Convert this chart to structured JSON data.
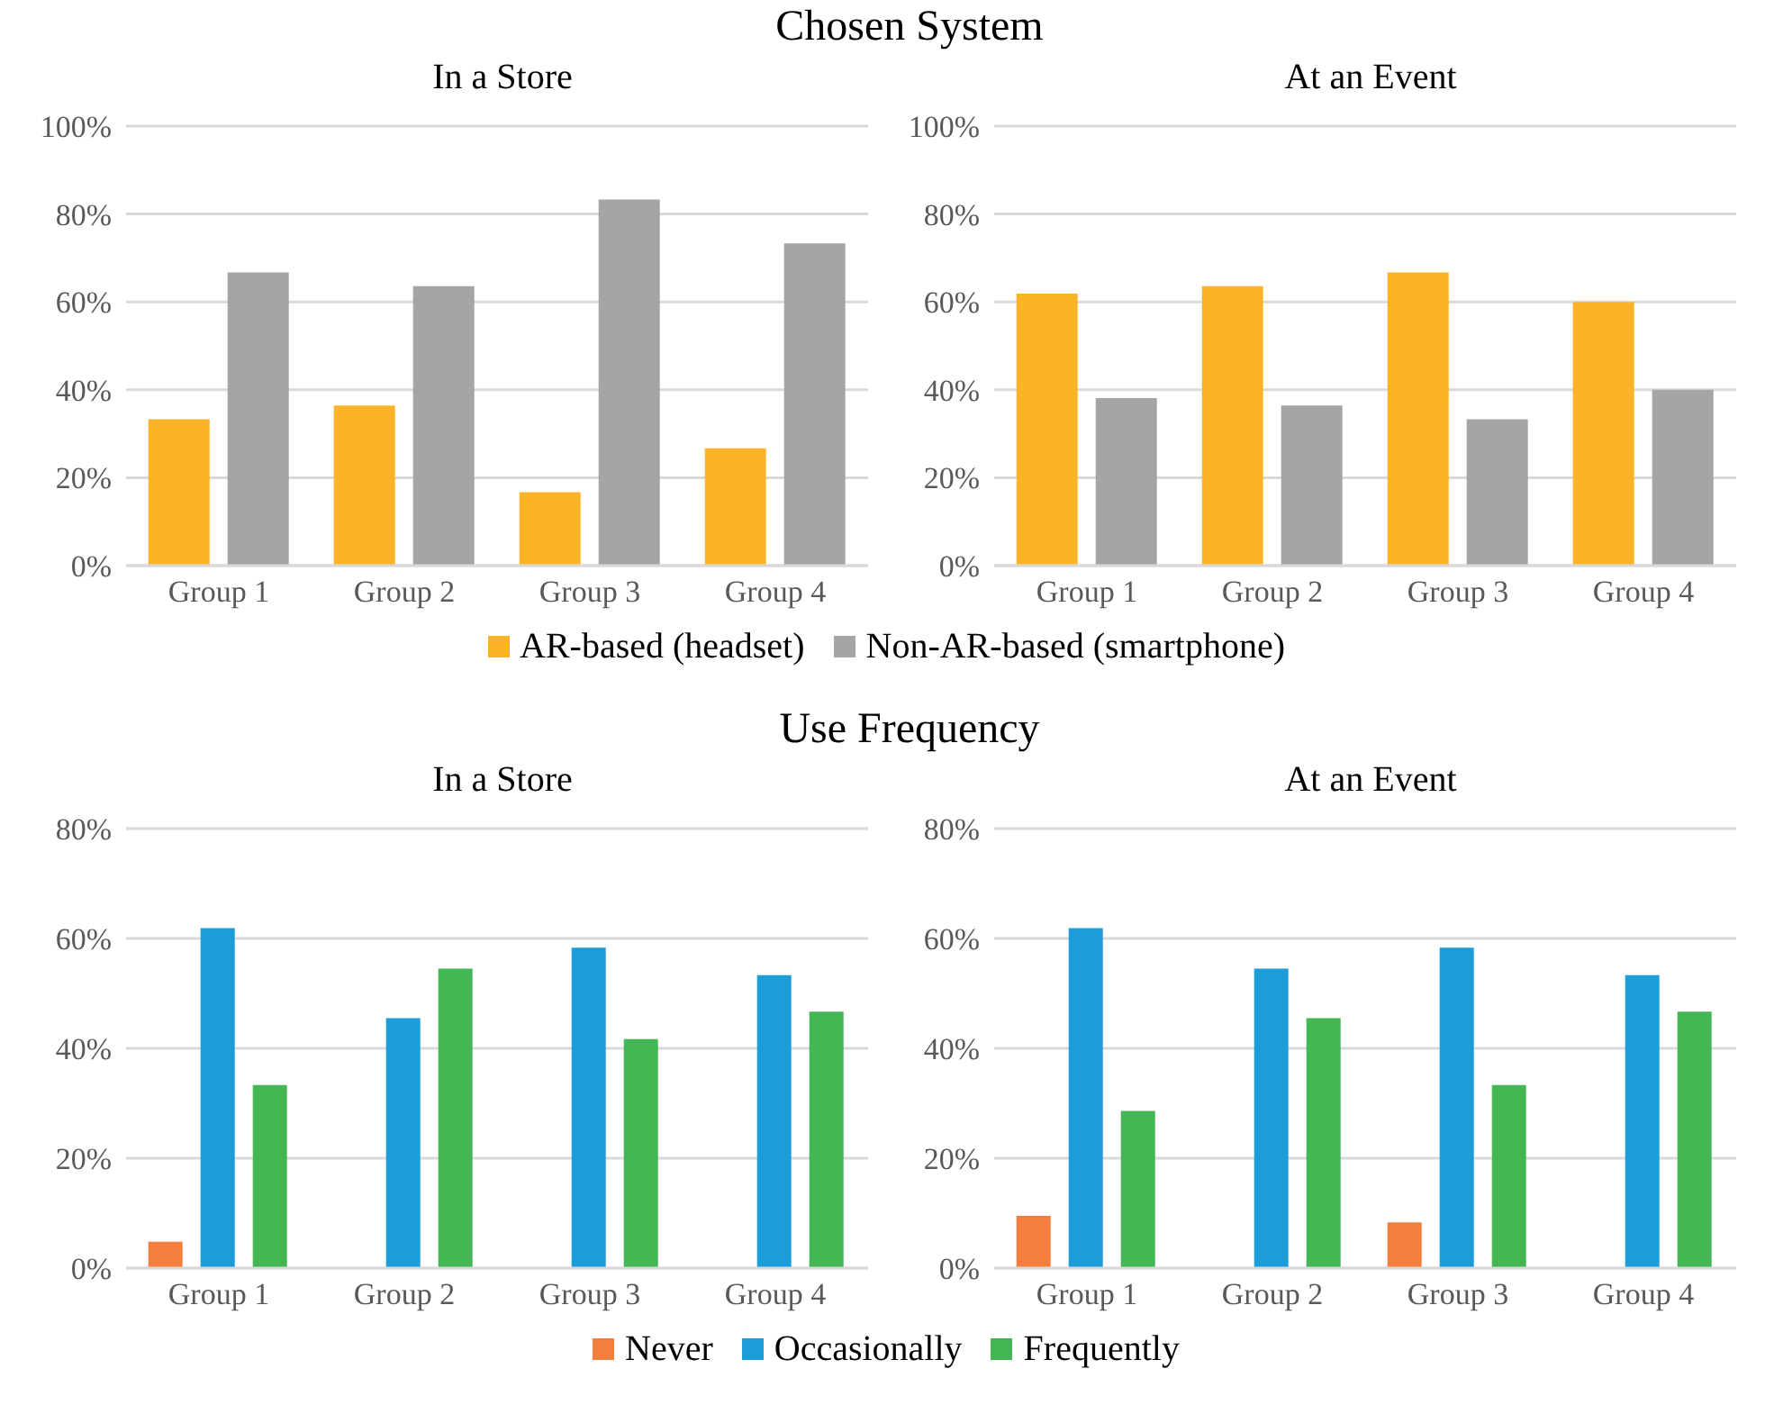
{
  "chart_data": [
    {
      "type": "bar",
      "title": "Chosen System",
      "subtitle": "In a Store",
      "categories": [
        "Group 1",
        "Group 2",
        "Group 3",
        "Group 4"
      ],
      "series": [
        {
          "name": "AR-based (headset)",
          "color": "#fbb427",
          "values": [
            33.3,
            36.4,
            16.7,
            26.7
          ]
        },
        {
          "name": "Non-AR-based (smartphone)",
          "color": "#a5a5a5",
          "values": [
            66.7,
            63.6,
            83.3,
            73.3
          ]
        }
      ],
      "ylim": [
        0,
        100
      ],
      "yticks": [
        {
          "value": 0,
          "label": "0%"
        },
        {
          "value": 20,
          "label": "20%"
        },
        {
          "value": 40,
          "label": "40%"
        },
        {
          "value": 60,
          "label": "60%"
        },
        {
          "value": 80,
          "label": "80%"
        },
        {
          "value": 100,
          "label": "100%"
        }
      ],
      "grid": "y",
      "legend": "bottom"
    },
    {
      "type": "bar",
      "subtitle": "At an Event",
      "categories": [
        "Group 1",
        "Group 2",
        "Group 3",
        "Group 4"
      ],
      "series": [
        {
          "color": "#fbb427",
          "values": [
            61.9,
            63.6,
            66.7,
            60
          ]
        },
        {
          "color": "#a5a5a5",
          "values": [
            38.1,
            36.4,
            33.3,
            40
          ]
        }
      ],
      "ylim": [
        0,
        100
      ],
      "yticks": [
        {
          "value": 0,
          "label": "0%"
        },
        {
          "value": 20,
          "label": "20%"
        },
        {
          "value": 40,
          "label": "40%"
        },
        {
          "value": 60,
          "label": "60%"
        },
        {
          "value": 80,
          "label": "80%"
        },
        {
          "value": 100,
          "label": "100%"
        }
      ],
      "grid": "y"
    },
    {
      "type": "bar",
      "title": "Use Frequency",
      "subtitle": "In a Store",
      "categories": [
        "Group 1",
        "Group 2",
        "Group 3",
        "Group 4"
      ],
      "series": [
        {
          "name": "Never",
          "color": "#f47e3e",
          "values": [
            4.8,
            0,
            0,
            0
          ]
        },
        {
          "name": "Occasionally",
          "color": "#1c9cd9",
          "values": [
            61.9,
            45.5,
            58.3,
            53.3
          ]
        },
        {
          "name": "Frequently",
          "color": "#45b654",
          "values": [
            33.3,
            54.5,
            41.7,
            46.7
          ]
        }
      ],
      "ylim": [
        0,
        80
      ],
      "yticks": [
        {
          "value": 0,
          "label": "0%"
        },
        {
          "value": 20,
          "label": "20%"
        },
        {
          "value": 40,
          "label": "40%"
        },
        {
          "value": 60,
          "label": "60%"
        },
        {
          "value": 80,
          "label": "80%"
        }
      ],
      "grid": "y",
      "legend": "bottom"
    },
    {
      "type": "bar",
      "subtitle": "At an Event",
      "categories": [
        "Group 1",
        "Group 2",
        "Group 3",
        "Group 4"
      ],
      "series": [
        {
          "color": "#f47e3e",
          "values": [
            9.5,
            0,
            8.3,
            0
          ]
        },
        {
          "color": "#1c9cd9",
          "values": [
            61.9,
            54.5,
            58.3,
            53.3
          ]
        },
        {
          "color": "#45b654",
          "values": [
            28.6,
            45.5,
            33.3,
            46.7
          ]
        }
      ],
      "ylim": [
        0,
        80
      ],
      "yticks": [
        {
          "value": 0,
          "label": "0%"
        },
        {
          "value": 20,
          "label": "20%"
        },
        {
          "value": 40,
          "label": "40%"
        },
        {
          "value": 60,
          "label": "60%"
        },
        {
          "value": 80,
          "label": "80%"
        }
      ],
      "grid": "y"
    }
  ]
}
